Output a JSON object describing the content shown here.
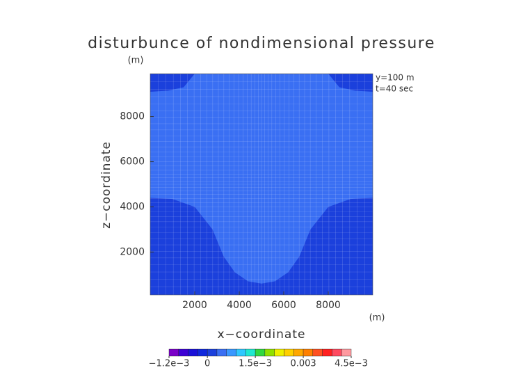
{
  "chart_data": {
    "type": "contour",
    "title": "disturbunce of nondimensional pressure",
    "x_label": "x−coordinate",
    "y_label": "z−coordinate",
    "x_unit": "(m)",
    "y_unit": "(m)",
    "annotations": [
      "y=100 m",
      "t=40 sec"
    ],
    "xlim": [
      0,
      10000
    ],
    "ylim": [
      100,
      9900
    ],
    "xticks": [
      2000,
      4000,
      6000,
      8000
    ],
    "yticks": [
      2000,
      4000,
      6000,
      8000
    ],
    "regions": [
      {
        "color": "#1b40dc"
      },
      {
        "color": "#3a6ff3",
        "x": [
          2000,
          1500,
          800,
          0,
          0,
          1000,
          2000,
          2800,
          3300,
          3800,
          4400,
          5000,
          5600,
          6200,
          6700,
          7200,
          8000,
          9000,
          10000,
          10000,
          9200,
          8500,
          8000
        ],
        "y": [
          9900,
          9300,
          9150,
          9100,
          4400,
          4350,
          4000,
          3000,
          1800,
          1100,
          700,
          600,
          700,
          1100,
          1800,
          3000,
          4000,
          4350,
          4400,
          9100,
          9150,
          9300,
          9900
        ]
      }
    ],
    "colorbar": {
      "levels": [
        -0.0012,
        -0.0009,
        -0.0006,
        -0.0003,
        0,
        0.0003,
        0.0006,
        0.0009,
        0.0012,
        0.0015,
        0.0018,
        0.0021,
        0.0024,
        0.0027,
        0.003,
        0.0033,
        0.0036,
        0.0039,
        0.0042,
        0.0045
      ],
      "colors": [
        "#7a00c8",
        "#3c00d4",
        "#1a10d8",
        "#1028dc",
        "#1b40dc",
        "#3a6ff3",
        "#3a98ff",
        "#30c8ff",
        "#20e8d0",
        "#30d840",
        "#90e000",
        "#eef000",
        "#ffd000",
        "#ffa800",
        "#ff8000",
        "#ff5020",
        "#ff2020",
        "#ff4a60",
        "#ff9aa0"
      ],
      "ticks": [
        {
          "value": -0.0012,
          "label": "−1.2e−3"
        },
        0,
        {
          "value": 0.0015,
          "label": "1.5e−3"
        },
        0.003,
        {
          "value": 0.0045,
          "label": "4.5e−3"
        }
      ]
    }
  }
}
